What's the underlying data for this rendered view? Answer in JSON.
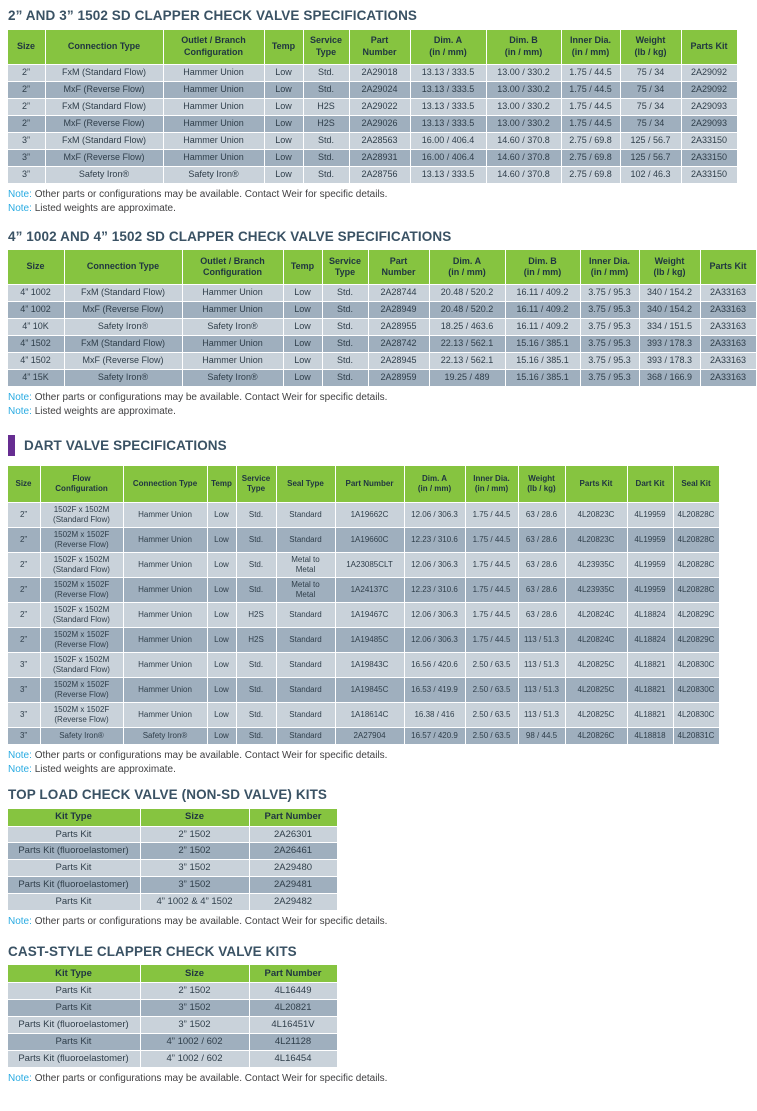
{
  "note_label": "Note:",
  "colors": {
    "header_green": "#86C440",
    "row_light": "#C9D2DA",
    "row_dark": "#9FAFBE",
    "title_slate": "#3A5264",
    "note_accent_cyan": "#29ABE2",
    "accent_purple": "#662D91"
  },
  "tables": [
    {
      "title": "2” AND 3” 1502 SD CLAPPER CHECK VALVE SPECIFICATIONS",
      "columns": [
        "Size",
        "Connection Type",
        "Outlet / Branch\nConfiguration",
        "Temp",
        "Service\nType",
        "Part\nNumber",
        "Dim. A\n(in / mm)",
        "Dim. B\n(in / mm)",
        "Inner Dia.\n(in / mm)",
        "Weight\n(lb / kg)",
        "Parts Kit"
      ],
      "widths": [
        37,
        117,
        100,
        38,
        45,
        60,
        75,
        74,
        58,
        60,
        55
      ],
      "rows": [
        [
          "2”",
          "FxM (Standard Flow)",
          "Hammer Union",
          "Low",
          "Std.",
          "2A29018",
          "13.13 / 333.5",
          "13.00 / 330.2",
          "1.75 / 44.5",
          "75 / 34",
          "2A29092"
        ],
        [
          "2”",
          "MxF (Reverse Flow)",
          "Hammer Union",
          "Low",
          "Std.",
          "2A29024",
          "13.13 / 333.5",
          "13.00 / 330.2",
          "1.75 / 44.5",
          "75 / 34",
          "2A29092"
        ],
        [
          "2”",
          "FxM (Standard Flow)",
          "Hammer Union",
          "Low",
          "H2S",
          "2A29022",
          "13.13 / 333.5",
          "13.00 / 330.2",
          "1.75 / 44.5",
          "75 / 34",
          "2A29093"
        ],
        [
          "2”",
          "MxF (Reverse Flow)",
          "Hammer Union",
          "Low",
          "H2S",
          "2A29026",
          "13.13 / 333.5",
          "13.00 / 330.2",
          "1.75 / 44.5",
          "75 / 34",
          "2A29093"
        ],
        [
          "3”",
          "FxM (Standard Flow)",
          "Hammer Union",
          "Low",
          "Std.",
          "2A28563",
          "16.00 / 406.4",
          "14.60 / 370.8",
          "2.75 / 69.8",
          "125 / 56.7",
          "2A33150"
        ],
        [
          "3”",
          "MxF (Reverse Flow)",
          "Hammer Union",
          "Low",
          "Std.",
          "2A28931",
          "16.00 / 406.4",
          "14.60 / 370.8",
          "2.75 / 69.8",
          "125 / 56.7",
          "2A33150"
        ],
        [
          "3”",
          "Safety Iron®",
          "Safety Iron®",
          "Low",
          "Std.",
          "2A28756",
          "13.13 / 333.5",
          "14.60 / 370.8",
          "2.75 / 69.8",
          "102 / 46.3",
          "2A33150"
        ]
      ],
      "notes": [
        "Other parts or configurations may be available. Contact Weir for specific details.",
        "Listed weights are approximate."
      ]
    },
    {
      "title": "4” 1002 AND 4” 1502 SD CLAPPER CHECK VALVE SPECIFICATIONS",
      "columns": [
        "Size",
        "Connection Type",
        "Outlet / Branch\nConfiguration",
        "Temp",
        "Service\nType",
        "Part\nNumber",
        "Dim. A\n(in / mm)",
        "Dim. B\n(in / mm)",
        "Inner Dia.\n(in / mm)",
        "Weight\n(lb / kg)",
        "Parts Kit"
      ],
      "widths": [
        56,
        117,
        100,
        38,
        45,
        60,
        75,
        74,
        58,
        60,
        55
      ],
      "rows": [
        [
          "4” 1002",
          "FxM (Standard Flow)",
          "Hammer Union",
          "Low",
          "Std.",
          "2A28744",
          "20.48 / 520.2",
          "16.11 / 409.2",
          "3.75 / 95.3",
          "340 / 154.2",
          "2A33163"
        ],
        [
          "4” 1002",
          "MxF (Reverse Flow)",
          "Hammer Union",
          "Low",
          "Std.",
          "2A28949",
          "20.48 / 520.2",
          "16.11 / 409.2",
          "3.75 / 95.3",
          "340 / 154.2",
          "2A33163"
        ],
        [
          "4” 10K",
          "Safety Iron®",
          "Safety Iron®",
          "Low",
          "Std.",
          "2A28955",
          "18.25 / 463.6",
          "16.11 / 409.2",
          "3.75 / 95.3",
          "334 / 151.5",
          "2A33163"
        ],
        [
          "4” 1502",
          "FxM (Standard Flow)",
          "Hammer Union",
          "Low",
          "Std.",
          "2A28742",
          "22.13 / 562.1",
          "15.16 / 385.1",
          "3.75 / 95.3",
          "393 / 178.3",
          "2A33163"
        ],
        [
          "4” 1502",
          "MxF (Reverse Flow)",
          "Hammer Union",
          "Low",
          "Std.",
          "2A28945",
          "22.13 / 562.1",
          "15.16 / 385.1",
          "3.75 / 95.3",
          "393 / 178.3",
          "2A33163"
        ],
        [
          "4” 15K",
          "Safety Iron®",
          "Safety Iron®",
          "Low",
          "Std.",
          "2A28959",
          "19.25 / 489",
          "15.16 / 385.1",
          "3.75 / 95.3",
          "368 / 166.9",
          "2A33163"
        ]
      ],
      "notes": [
        "Other parts or configurations may be available. Contact Weir for specific details.",
        "Listed weights are approximate."
      ]
    },
    {
      "title": "DART VALVE SPECIFICATIONS",
      "columns": [
        "Size",
        "Flow\nConfiguration",
        "Connection Type",
        "Temp",
        "Service\nType",
        "Seal Type",
        "Part Number",
        "Dim. A\n(in / mm)",
        "Inner Dia.\n(in / mm)",
        "Weight\n(lb / kg)",
        "Parts Kit",
        "Dart Kit",
        "Seal Kit"
      ],
      "widths": [
        32,
        82,
        83,
        28,
        39,
        58,
        68,
        60,
        52,
        46,
        61,
        45,
        45
      ],
      "rows": [
        [
          "2”",
          "1502F x 1502M\n(Standard Flow)",
          "Hammer Union",
          "Low",
          "Std.",
          "Standard",
          "1A19662C",
          "12.06 / 306.3",
          "1.75 / 44.5",
          "63 / 28.6",
          "4L20823C",
          "4L19959",
          "4L20828C"
        ],
        [
          "2”",
          "1502M x 1502F\n(Reverse Flow)",
          "Hammer Union",
          "Low",
          "Std.",
          "Standard",
          "1A19660C",
          "12.23 / 310.6",
          "1.75 / 44.5",
          "63 / 28.6",
          "4L20823C",
          "4L19959",
          "4L20828C"
        ],
        [
          "2”",
          "1502F x 1502M\n(Standard Flow)",
          "Hammer Union",
          "Low",
          "Std.",
          "Metal to\nMetal",
          "1A23085CLT",
          "12.06 / 306.3",
          "1.75 / 44.5",
          "63 / 28.6",
          "4L23935C",
          "4L19959",
          "4L20828C"
        ],
        [
          "2”",
          "1502M x 1502F\n(Reverse Flow)",
          "Hammer Union",
          "Low",
          "Std.",
          "Metal to\nMetal",
          "1A24137C",
          "12.23 / 310.6",
          "1.75 / 44.5",
          "63 / 28.6",
          "4L23935C",
          "4L19959",
          "4L20828C"
        ],
        [
          "2”",
          "1502F x 1502M\n(Standard Flow)",
          "Hammer Union",
          "Low",
          "H2S",
          "Standard",
          "1A19467C",
          "12.06 / 306.3",
          "1.75 / 44.5",
          "63 / 28.6",
          "4L20824C",
          "4L18824",
          "4L20829C"
        ],
        [
          "2”",
          "1502M x 1502F\n(Reverse Flow)",
          "Hammer Union",
          "Low",
          "H2S",
          "Standard",
          "1A19485C",
          "12.06 / 306.3",
          "1.75 / 44.5",
          "113 / 51.3",
          "4L20824C",
          "4L18824",
          "4L20829C"
        ],
        [
          "3”",
          "1502F x 1502M\n(Standard Flow)",
          "Hammer Union",
          "Low",
          "Std.",
          "Standard",
          "1A19843C",
          "16.56 / 420.6",
          "2.50 / 63.5",
          "113 / 51.3",
          "4L20825C",
          "4L18821",
          "4L20830C"
        ],
        [
          "3”",
          "1502M x 1502F\n(Reverse Flow)",
          "Hammer Union",
          "Low",
          "Std.",
          "Standard",
          "1A19845C",
          "16.53 / 419.9",
          "2.50 / 63.5",
          "113 / 51.3",
          "4L20825C",
          "4L18821",
          "4L20830C"
        ],
        [
          "3”",
          "1502M x 1502F\n(Reverse Flow)",
          "Hammer Union",
          "Low",
          "Std.",
          "Standard",
          "1A18614C",
          "16.38 / 416",
          "2.50 / 63.5",
          "113 / 51.3",
          "4L20825C",
          "4L18821",
          "4L20830C"
        ],
        [
          "3”",
          "Safety Iron®",
          "Safety Iron®",
          "Low",
          "Std.",
          "Standard",
          "2A27904",
          "16.57 / 420.9",
          "2.50 / 63.5",
          "98 / 44.5",
          "4L20826C",
          "4L18818",
          "4L20831C"
        ]
      ],
      "notes": [
        "Other parts or configurations may be available. Contact Weir for specific details.",
        "Listed weights are approximate."
      ]
    },
    {
      "title": "TOP LOAD CHECK VALVE (NON-SD VALVE) KITS",
      "columns": [
        "Kit Type",
        "Size",
        "Part Number"
      ],
      "widths": [
        132,
        108,
        87
      ],
      "rows": [
        [
          "Parts Kit",
          "2” 1502",
          "2A26301"
        ],
        [
          "Parts Kit (fluoroelastomer)",
          "2” 1502",
          "2A26461"
        ],
        [
          "Parts Kit",
          "3” 1502",
          "2A29480"
        ],
        [
          "Parts Kit (fluoroelastomer)",
          "3” 1502",
          "2A29481"
        ],
        [
          "Parts Kit",
          "4” 1002 & 4” 1502",
          "2A29482"
        ]
      ],
      "notes": [
        "Other parts or configurations may be available. Contact Weir for specific details."
      ]
    },
    {
      "title": "CAST-STYLE CLAPPER CHECK VALVE KITS",
      "columns": [
        "Kit Type",
        "Size",
        "Part Number"
      ],
      "widths": [
        132,
        108,
        87
      ],
      "rows": [
        [
          "Parts Kit",
          "2” 1502",
          "4L16449"
        ],
        [
          "Parts Kit",
          "3” 1502",
          "4L20821"
        ],
        [
          "Parts Kit (fluoroelastomer)",
          "3” 1502",
          "4L16451V"
        ],
        [
          "Parts Kit",
          "4” 1002 / 602",
          "4L21128"
        ],
        [
          "Parts Kit (fluoroelastomer)",
          "4” 1002 / 602",
          "4L16454"
        ]
      ],
      "notes": [
        "Other parts or configurations may be available. Contact Weir for specific details."
      ]
    }
  ]
}
